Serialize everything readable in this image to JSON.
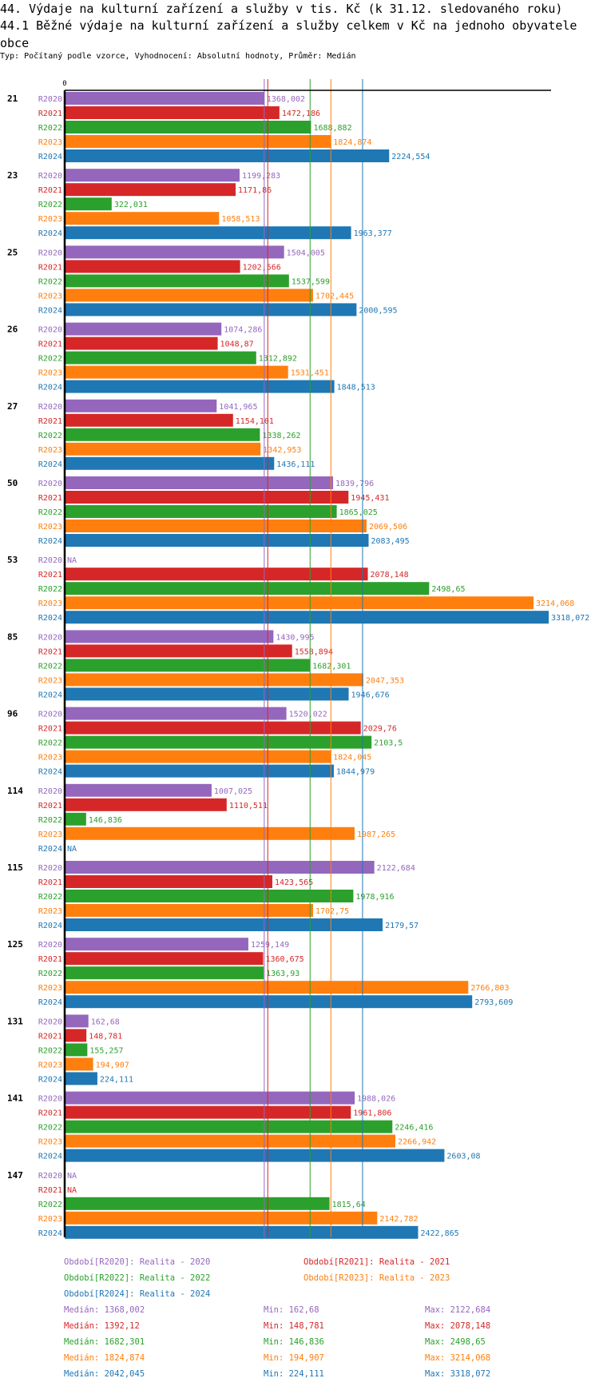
{
  "header": {
    "title": "44. Výdaje na kulturní zařízení a služby v tis. Kč (k 31.12. sledovaného roku)",
    "subtitle": "44.1 Běžné výdaje na kulturní zařízení a služby celkem v Kč na jednoho obyvatele obce",
    "meta": "Typ: Počítaný podle vzorce, Vyhodnocení: Absolutní hodnoty, Průměr: Medián"
  },
  "chart_data": {
    "type": "bar",
    "orientation": "horizontal",
    "title": "44.1 Běžné výdaje na kulturní zařízení a služby celkem v Kč na jednoho obyvatele obce",
    "xlabel": "",
    "ylabel": "",
    "x_tick_labels": [
      "0"
    ],
    "xlim": [
      0,
      3318.072
    ],
    "categories": [
      "21",
      "23",
      "25",
      "26",
      "27",
      "50",
      "53",
      "85",
      "96",
      "114",
      "115",
      "125",
      "131",
      "141",
      "147"
    ],
    "series": [
      {
        "name": "R2020",
        "color": "#9467bd",
        "values": [
          1368.002,
          1199.283,
          1504.005,
          1074.286,
          1041.965,
          1839.796,
          null,
          1430.995,
          1520.022,
          1007.025,
          2122.684,
          1259.149,
          162.68,
          1988.026,
          null
        ],
        "labels": [
          "1368,002",
          "1199,283",
          "1504,005",
          "1074,286",
          "1041,965",
          "1839,796",
          "NA",
          "1430,995",
          "1520,022",
          "1007,025",
          "2122,684",
          "1259,149",
          "162,68",
          "1988,026",
          "NA"
        ]
      },
      {
        "name": "R2021",
        "color": "#d62728",
        "values": [
          1472.186,
          1171.86,
          1202.566,
          1048.87,
          1154.101,
          1945.431,
          2078.148,
          1558.894,
          2029.76,
          1110.511,
          1423.565,
          1360.675,
          148.781,
          1961.806,
          null
        ],
        "labels": [
          "1472,186",
          "1171,86",
          "1202,566",
          "1048,87",
          "1154,101",
          "1945,431",
          "2078,148",
          "1558,894",
          "2029,76",
          "1110,511",
          "1423,565",
          "1360,675",
          "148,781",
          "1961,806",
          "NA"
        ]
      },
      {
        "name": "R2022",
        "color": "#2ca02c",
        "values": [
          1688.882,
          322.031,
          1537.599,
          1312.892,
          1338.262,
          1865.025,
          2498.65,
          1682.301,
          2103.5,
          146.836,
          1978.916,
          1363.93,
          155.257,
          2246.416,
          1815.64
        ],
        "labels": [
          "1688,882",
          "322,031",
          "1537,599",
          "1312,892",
          "1338,262",
          "1865,025",
          "2498,65",
          "1682,301",
          "2103,5",
          "146,836",
          "1978,916",
          "1363,93",
          "155,257",
          "2246,416",
          "1815,64"
        ]
      },
      {
        "name": "R2023",
        "color": "#ff7f0e",
        "values": [
          1824.874,
          1058.513,
          1702.445,
          1531.451,
          1342.953,
          2069.506,
          3214.068,
          2047.353,
          1824.045,
          1987.265,
          1702.75,
          2766.803,
          194.907,
          2266.942,
          2142.782
        ],
        "labels": [
          "1824,874",
          "1058,513",
          "1702,445",
          "1531,451",
          "1342,953",
          "2069,506",
          "3214,068",
          "2047,353",
          "1824,045",
          "1987,265",
          "1702,75",
          "2766,803",
          "194,907",
          "2266,942",
          "2142,782"
        ]
      },
      {
        "name": "R2024",
        "color": "#1f77b4",
        "values": [
          2224.554,
          1963.377,
          2000.595,
          1848.513,
          1436.111,
          2083.495,
          3318.072,
          1946.676,
          1844.979,
          null,
          2179.57,
          2793.609,
          224.111,
          2603.08,
          2422.865
        ],
        "labels": [
          "2224,554",
          "1963,377",
          "2000,595",
          "1848,513",
          "1436,111",
          "2083,495",
          "3318,072",
          "1946,676",
          "1844,979",
          "NA",
          "2179,57",
          "2793,609",
          "224,111",
          "2603,08",
          "2422,865"
        ]
      }
    ],
    "reference_lines": [
      {
        "series": "R2020",
        "type": "median",
        "value": 1368.002
      },
      {
        "series": "R2021",
        "type": "median",
        "value": 1392.12
      },
      {
        "series": "R2022",
        "type": "median",
        "value": 1682.301
      },
      {
        "series": "R2023",
        "type": "median",
        "value": 1824.874
      },
      {
        "series": "R2024",
        "type": "median",
        "value": 2042.045
      }
    ],
    "grid": false,
    "legend_position": "bottom"
  },
  "legend": {
    "periods": [
      {
        "key": "Období[R2020]:",
        "label": "Realita - 2020",
        "color": "#9467bd"
      },
      {
        "key": "Období[R2021]:",
        "label": "Realita - 2021",
        "color": "#d62728"
      },
      {
        "key": "Období[R2022]:",
        "label": "Realita - 2022",
        "color": "#2ca02c"
      },
      {
        "key": "Období[R2023]:",
        "label": "Realita - 2023",
        "color": "#ff7f0e"
      },
      {
        "key": "Období[R2024]:",
        "label": "Realita - 2024",
        "color": "#1f77b4"
      }
    ],
    "stats": [
      {
        "color": "#9467bd",
        "median_label": "Medián:",
        "median": "1368,002",
        "min_label": "Min:",
        "min": "162,68",
        "max_label": "Max:",
        "max": "2122,684"
      },
      {
        "color": "#d62728",
        "median_label": "Medián:",
        "median": "1392,12",
        "min_label": "Min:",
        "min": "148,781",
        "max_label": "Max:",
        "max": "2078,148"
      },
      {
        "color": "#2ca02c",
        "median_label": "Medián:",
        "median": "1682,301",
        "min_label": "Min:",
        "min": "146,836",
        "max_label": "Max:",
        "max": "2498,65"
      },
      {
        "color": "#ff7f0e",
        "median_label": "Medián:",
        "median": "1824,874",
        "min_label": "Min:",
        "min": "194,907",
        "max_label": "Max:",
        "max": "3214,068"
      },
      {
        "color": "#1f77b4",
        "median_label": "Medián:",
        "median": "2042,045",
        "min_label": "Min:",
        "min": "224,111",
        "max_label": "Max:",
        "max": "3318,072"
      }
    ]
  }
}
